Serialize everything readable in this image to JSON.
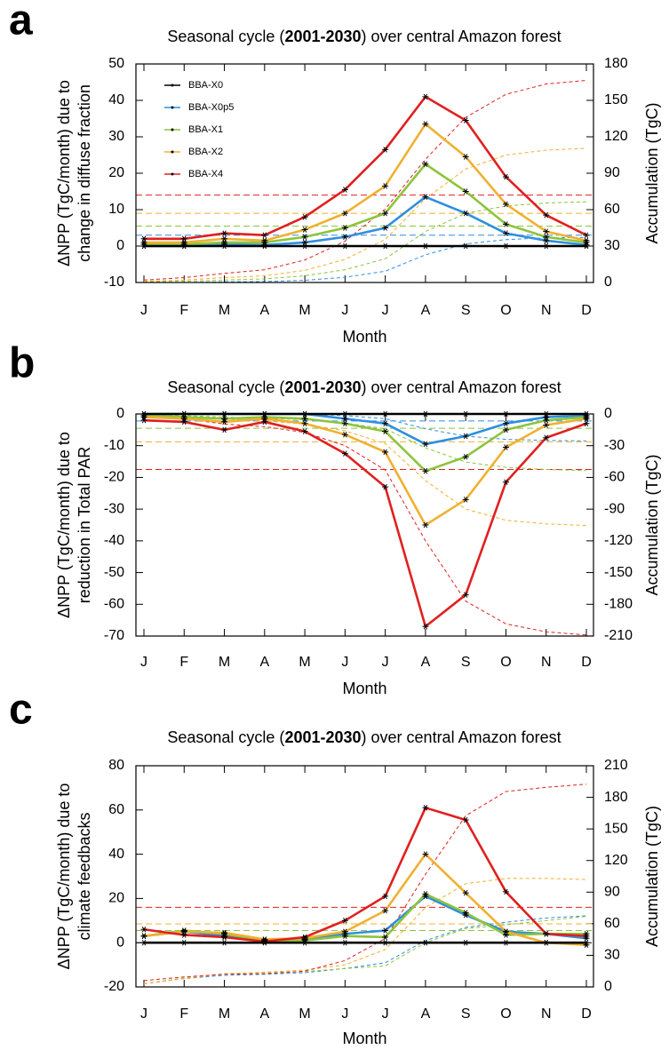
{
  "chart_data": [
    {
      "type": "line",
      "panel_label": "a",
      "title": [
        "Seasonal cycle  (",
        "2001-2030",
        ") over central Amazon forest"
      ],
      "ylabel": [
        "ΔNPP (TgC/month) due to",
        "change in diffuse fraction"
      ],
      "y2label": "Accumulation (TgC)",
      "xlabel": "Month",
      "categories": [
        "J",
        "F",
        "M",
        "A",
        "M",
        "J",
        "J",
        "A",
        "S",
        "O",
        "N",
        "D"
      ],
      "ylim": [
        -10,
        50
      ],
      "yticks": [
        -10,
        0,
        10,
        20,
        30,
        40,
        50
      ],
      "y2lim": [
        0,
        180
      ],
      "y2ticks": [
        0,
        30,
        60,
        90,
        120,
        150,
        180
      ],
      "legend": "upper left",
      "series": [
        {
          "name": "BBA-X0",
          "color": "#000000",
          "values": [
            0,
            0,
            0,
            0,
            0,
            0,
            0,
            0,
            0,
            0,
            0,
            0
          ],
          "mean": 0
        },
        {
          "name": "BBA-X0p5",
          "color": "#2f8fe0",
          "values": [
            0,
            0,
            0.5,
            0.3,
            1,
            2.5,
            5,
            13.5,
            9,
            3.5,
            1.5,
            0.3
          ],
          "mean": 3
        },
        {
          "name": "BBA-X1",
          "color": "#8cc43c",
          "values": [
            0.5,
            0.5,
            1,
            1,
            2.5,
            5,
            9,
            22.5,
            15,
            6,
            2.5,
            1
          ],
          "mean": 5.5
        },
        {
          "name": "BBA-X2",
          "color": "#f0b030",
          "values": [
            1,
            1,
            2,
            1.5,
            4.5,
            9,
            16.5,
            33.5,
            24.5,
            11.5,
            4,
            1.5
          ],
          "mean": 9
        },
        {
          "name": "BBA-X4",
          "color": "#e02020",
          "values": [
            2,
            2,
            3.5,
            3,
            8,
            15.5,
            26.5,
            41,
            34.5,
            19,
            8.5,
            3
          ],
          "mean": 14
        }
      ],
      "accumulation": [
        {
          "color": "#000000",
          "axis": "y2",
          "values": [
            0,
            0,
            0,
            0,
            0,
            0,
            0,
            0,
            0,
            0,
            0,
            0
          ]
        },
        {
          "color": "#2f8fe0",
          "axis": "y2",
          "values": [
            0,
            0,
            0.5,
            0.8,
            1.8,
            4.3,
            9.3,
            22.8,
            31.8,
            35.3,
            36.8,
            37.1
          ]
        },
        {
          "color": "#8cc43c",
          "axis": "y2",
          "values": [
            0.5,
            1,
            2,
            3,
            5.5,
            10.5,
            19.5,
            42,
            57,
            63,
            65.5,
            66.5
          ]
        },
        {
          "color": "#f0b030",
          "axis": "y2",
          "values": [
            1,
            2,
            4,
            5.5,
            10,
            19,
            35.5,
            69,
            93.5,
            105,
            109,
            110.5
          ]
        },
        {
          "color": "#e02020",
          "axis": "y2",
          "values": [
            2,
            4,
            7.5,
            10.5,
            18.5,
            34,
            60.5,
            101.5,
            136,
            155,
            163.5,
            166.5
          ]
        }
      ]
    },
    {
      "type": "line",
      "panel_label": "b",
      "title": [
        "Seasonal cycle  (",
        "2001-2030",
        ") over central Amazon forest"
      ],
      "ylabel": [
        "ΔNPP (TgC/month) due to",
        "reduction in Total PAR"
      ],
      "y2label": "Accumulation (TgC)",
      "xlabel": "Month",
      "categories": [
        "J",
        "F",
        "M",
        "A",
        "M",
        "J",
        "J",
        "A",
        "S",
        "O",
        "N",
        "D"
      ],
      "ylim": [
        -70,
        0
      ],
      "yticks": [
        -70,
        -60,
        -50,
        -40,
        -30,
        -20,
        -10,
        0
      ],
      "y2lim": [
        -210,
        0
      ],
      "y2ticks": [
        -210,
        -180,
        -150,
        -120,
        -90,
        -60,
        -30,
        0
      ],
      "series": [
        {
          "color": "#000000",
          "values": [
            0,
            0,
            0,
            0,
            0,
            0,
            0,
            0,
            0,
            0,
            0,
            0
          ],
          "mean": 0
        },
        {
          "color": "#2f8fe0",
          "values": [
            0,
            0,
            0,
            0,
            0,
            -1.5,
            -3,
            -9.5,
            -7,
            -3,
            -1,
            -0.5
          ],
          "mean": -2.2
        },
        {
          "color": "#8cc43c",
          "values": [
            -0.5,
            -1,
            -1.5,
            -1,
            -1.5,
            -3,
            -5.5,
            -18,
            -13.5,
            -5,
            -2,
            -1
          ],
          "mean": -4.5
        },
        {
          "color": "#f0b030",
          "values": [
            -1,
            -1.5,
            -2.5,
            -1.5,
            -3,
            -6.5,
            -12,
            -35,
            -27,
            -10.5,
            -3.5,
            -1.5
          ],
          "mean": -8.8
        },
        {
          "color": "#e02020",
          "values": [
            -2,
            -2.5,
            -5,
            -2.5,
            -5.5,
            -12.5,
            -23,
            -67,
            -57,
            -21.5,
            -7.5,
            -3
          ],
          "mean": -17.5
        }
      ],
      "accumulation": [
        {
          "color": "#000000",
          "axis": "y2",
          "values": [
            0,
            0,
            0,
            0,
            0,
            0,
            0,
            0,
            0,
            0,
            0,
            0
          ]
        },
        {
          "color": "#2f8fe0",
          "axis": "y2",
          "values": [
            0,
            0,
            0,
            0,
            0,
            -1.5,
            -4.5,
            -14,
            -21,
            -24,
            -25,
            -25.5
          ]
        },
        {
          "color": "#8cc43c",
          "axis": "y2",
          "values": [
            -0.5,
            -1.5,
            -3,
            -4,
            -5.5,
            -8.5,
            -14,
            -32,
            -45.5,
            -50.5,
            -52.5,
            -53.5
          ]
        },
        {
          "color": "#f0b030",
          "axis": "y2",
          "values": [
            -1,
            -2.5,
            -5,
            -6.5,
            -9.5,
            -16,
            -28,
            -63,
            -90,
            -100.5,
            -104,
            -105.5
          ]
        },
        {
          "color": "#e02020",
          "axis": "y2",
          "values": [
            -2,
            -4.5,
            -9.5,
            -12,
            -17.5,
            -30,
            -53,
            -120,
            -177,
            -198.5,
            -206,
            -209
          ]
        }
      ]
    },
    {
      "type": "line",
      "panel_label": "c",
      "title": [
        "Seasonal cycle  (",
        "2001-2030",
        ") over central Amazon forest"
      ],
      "ylabel": [
        "ΔNPP (TgC/month) due to",
        "climate feedbacks"
      ],
      "y2label": "Accumulation (TgC)",
      "xlabel": "Month",
      "categories": [
        "J",
        "F",
        "M",
        "A",
        "M",
        "J",
        "J",
        "A",
        "S",
        "O",
        "N",
        "D"
      ],
      "ylim": [
        -20,
        80
      ],
      "yticks": [
        -20,
        0,
        20,
        40,
        60,
        80
      ],
      "y2lim": [
        0,
        210
      ],
      "y2ticks": [
        0,
        30,
        60,
        90,
        120,
        150,
        180,
        210
      ],
      "series": [
        {
          "color": "#000000",
          "values": [
            0,
            0,
            0,
            0,
            0,
            0,
            0,
            0,
            0,
            0,
            0,
            0
          ],
          "mean": 0
        },
        {
          "color": "#2f8fe0",
          "values": [
            3,
            5,
            3,
            1,
            1.5,
            4,
            5.5,
            21,
            12.5,
            5,
            4,
            2
          ],
          "mean": 5.5
        },
        {
          "color": "#8cc43c",
          "values": [
            3,
            5.5,
            4,
            1,
            1,
            3,
            2.5,
            22,
            13.5,
            3.5,
            4,
            4
          ],
          "mean": 5.5
        },
        {
          "color": "#f0b030",
          "values": [
            3,
            5,
            4.5,
            1.5,
            2,
            5,
            14.5,
            40,
            22.5,
            5,
            0,
            -1
          ],
          "mean": 8.5
        },
        {
          "color": "#e02020",
          "values": [
            6,
            3.5,
            2.5,
            0.5,
            2.5,
            10,
            21,
            61,
            55.5,
            23,
            4,
            3
          ],
          "mean": 16
        }
      ],
      "accumulation": [
        {
          "color": "#000000",
          "axis": "y2",
          "values": [
            0,
            0,
            0,
            0,
            0,
            0,
            0,
            0,
            0,
            0,
            0,
            0
          ]
        },
        {
          "color": "#2f8fe0",
          "axis": "y2",
          "values": [
            3,
            8,
            11,
            12,
            13.5,
            17.5,
            23,
            44,
            56.5,
            61.5,
            65.5,
            67.5
          ]
        },
        {
          "color": "#8cc43c",
          "axis": "y2",
          "values": [
            3,
            8.5,
            12.5,
            13.5,
            14.5,
            17.5,
            20,
            42,
            55.5,
            59,
            63,
            67
          ]
        },
        {
          "color": "#f0b030",
          "axis": "y2",
          "values": [
            3,
            8,
            12.5,
            14,
            16,
            21,
            35.5,
            75.5,
            98,
            103,
            103,
            102
          ]
        },
        {
          "color": "#e02020",
          "axis": "y2",
          "values": [
            6,
            9.5,
            12,
            12.5,
            15,
            25,
            46,
            107,
            162.5,
            185.5,
            189.5,
            192.5
          ]
        }
      ]
    }
  ]
}
